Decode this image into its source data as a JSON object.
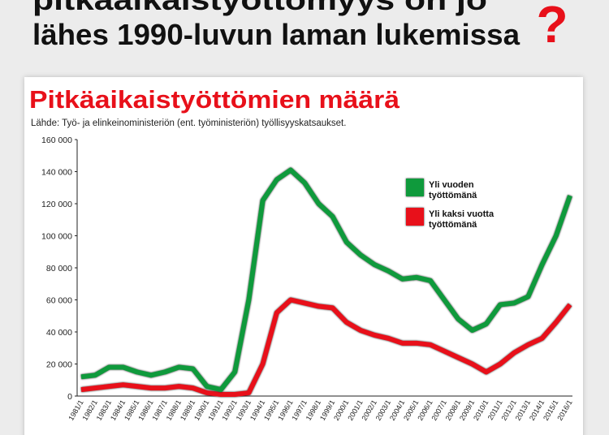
{
  "headline": {
    "line1": "pitkäaikaistyöttömyys on jo",
    "line2": "lähes 1990-luvun laman lukemissa",
    "mark": "?"
  },
  "chart_data": {
    "type": "line",
    "title": "Pitkäaikaistyöttömien määrä",
    "subtitle": "Lähde: Työ- ja elinkeinoministeriön (ent. työministeriön) työllisyyskatsaukset.",
    "categories": [
      "1981/1",
      "1982/1",
      "1983/1",
      "1984/1",
      "1985/1",
      "1986/1",
      "1987/1",
      "1988/1",
      "1989/1",
      "1990/1",
      "1991/1",
      "1992/1",
      "1993/1",
      "1994/1",
      "1995/1",
      "1996/1",
      "1997/1",
      "1998/1",
      "1999/1",
      "2000/1",
      "2001/1",
      "2002/1",
      "2003/1",
      "2004/1",
      "2005/1",
      "2006/1",
      "2007/1",
      "2008/1",
      "2009/1",
      "2010/1",
      "2011/1",
      "2012/1",
      "2013/1",
      "2014/1",
      "2015/1",
      "2016/1"
    ],
    "series": [
      {
        "name": "Yli vuoden työttömänä",
        "color": "#0f9a3c",
        "values": [
          12000,
          13000,
          18000,
          18000,
          15000,
          13000,
          15000,
          18000,
          17000,
          6000,
          4000,
          15000,
          60000,
          122000,
          135000,
          141000,
          133000,
          120000,
          112000,
          96000,
          88000,
          82000,
          78000,
          73000,
          74000,
          72000,
          60000,
          48000,
          41000,
          45000,
          57000,
          58000,
          62000,
          82000,
          100000,
          125000
        ]
      },
      {
        "name": "Yli kaksi vuotta työttömänä",
        "color": "#e8101a",
        "values": [
          4000,
          5000,
          6000,
          7000,
          6000,
          5000,
          5000,
          6000,
          5000,
          2000,
          1000,
          1000,
          2000,
          20000,
          52000,
          60000,
          58000,
          56000,
          55000,
          46000,
          41000,
          38000,
          36000,
          33000,
          33000,
          32000,
          28000,
          24000,
          20000,
          15000,
          20000,
          27000,
          32000,
          36000,
          46000,
          57000
        ]
      }
    ],
    "ylim": [
      0,
      160000
    ],
    "yticks": [
      {
        "value": 0,
        "label": "0"
      },
      {
        "value": 20000,
        "label": "20 000"
      },
      {
        "value": 40000,
        "label": "40 000"
      },
      {
        "value": 60000,
        "label": "60 000"
      },
      {
        "value": 80000,
        "label": "80 000"
      },
      {
        "value": 100000,
        "label": "100 000"
      },
      {
        "value": 120000,
        "label": "120 000"
      },
      {
        "value": 140000,
        "label": "140 000"
      },
      {
        "value": 160000,
        "label": "160 000"
      }
    ]
  }
}
